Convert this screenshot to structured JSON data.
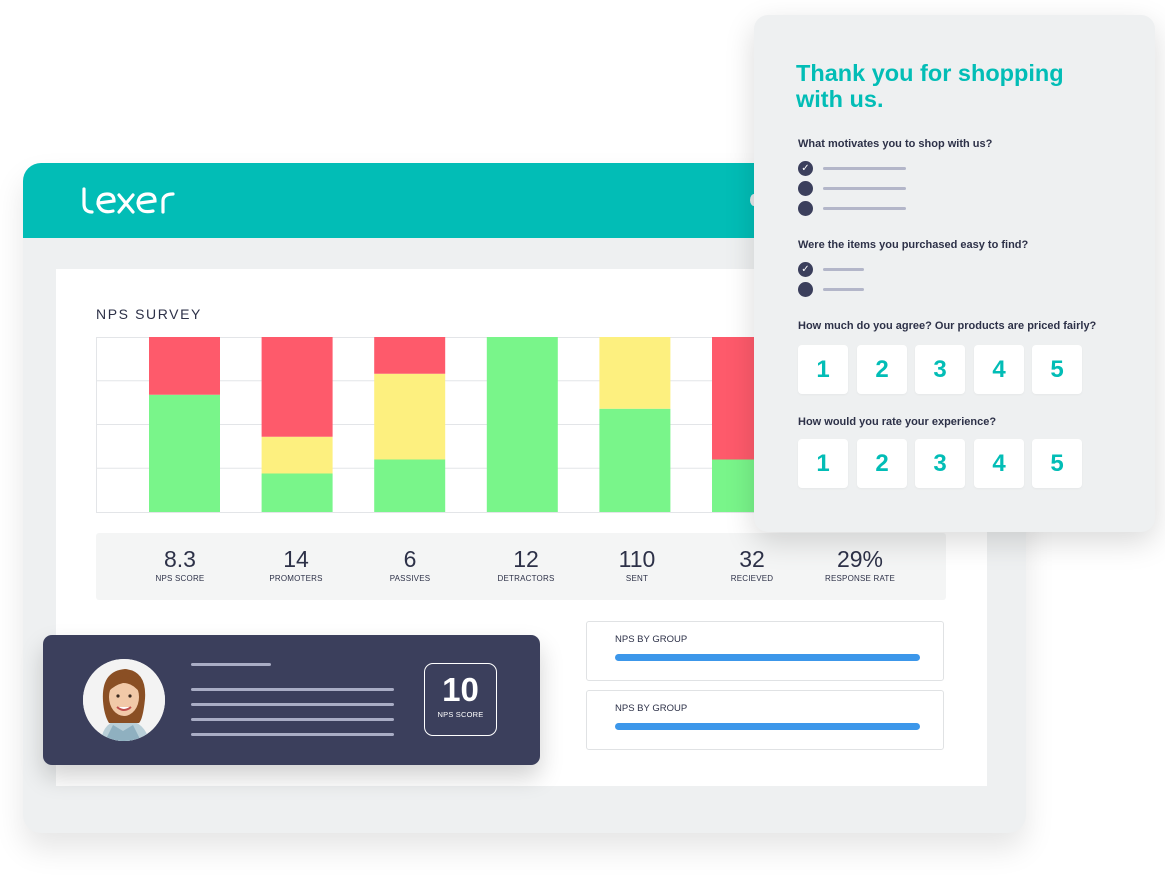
{
  "brand": {
    "logo_text": "lexer",
    "header_color": "#02bdb6"
  },
  "dashboard": {
    "title": "NPS SURVEY",
    "chart_data": {
      "type": "bar",
      "stacked": true,
      "series": [
        {
          "name": "promoters",
          "color": "#79f58a",
          "values": [
            67,
            22,
            30,
            100,
            59,
            30
          ]
        },
        {
          "name": "passives",
          "color": "#fdf07f",
          "values": [
            0,
            21,
            49,
            0,
            41,
            0
          ]
        },
        {
          "name": "detractors",
          "color": "#fe5a6b",
          "values": [
            33,
            57,
            21,
            0,
            0,
            70
          ]
        }
      ],
      "ylim": [
        0,
        100
      ],
      "grid": true
    },
    "stats": [
      {
        "value": "8.3",
        "label": "NPS SCORE"
      },
      {
        "value": "14",
        "label": "PROMOTERS"
      },
      {
        "value": "6",
        "label": "PASSIVES"
      },
      {
        "value": "12",
        "label": "DETRACTORS"
      },
      {
        "value": "110",
        "label": "SENT"
      },
      {
        "value": "32",
        "label": "RECIEVED"
      },
      {
        "value": "29%",
        "label": "RESPONSE RATE"
      }
    ],
    "groups": [
      {
        "label": "NPS BY GROUP",
        "color": "#3c97ea"
      },
      {
        "label": "NPS BY GROUP",
        "color": "#3c97ea"
      }
    ]
  },
  "review_card": {
    "score": "10",
    "score_label": "NPS SCORE",
    "avatar": "customer-avatar"
  },
  "survey": {
    "title": "Thank you for shopping with us.",
    "questions": [
      {
        "text": "What motivates you to shop with us?",
        "options_checked": [
          true,
          false,
          false
        ]
      },
      {
        "text": "Were the items you purchased easy to find?",
        "options_checked": [
          true,
          false
        ]
      },
      {
        "text": "How much do you agree? Our products are priced fairly?",
        "scale": [
          "1",
          "2",
          "3",
          "4",
          "5"
        ]
      },
      {
        "text": "How would you rate your experience?",
        "scale": [
          "1",
          "2",
          "3",
          "4",
          "5"
        ]
      }
    ],
    "accent_color": "#02bdb6"
  }
}
